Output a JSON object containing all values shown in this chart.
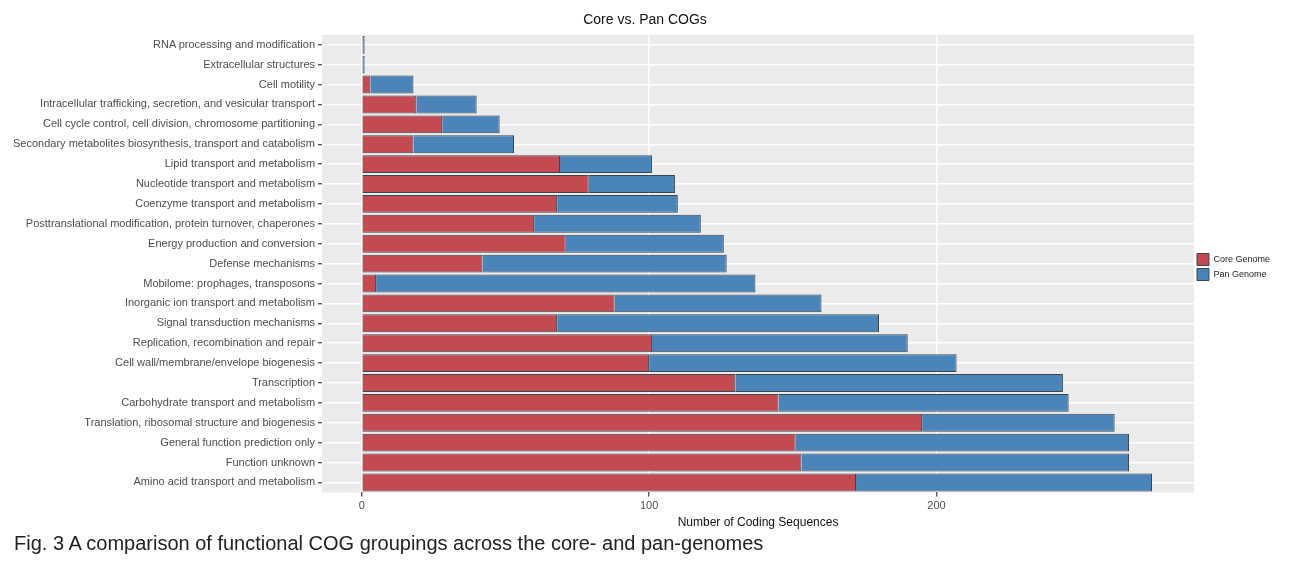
{
  "chart_data": {
    "type": "bar",
    "orientation": "horizontal",
    "stacked": true,
    "title": "Core vs. Pan COGs",
    "xlabel": "Number of Coding Sequences",
    "categories": [
      "RNA processing and modification",
      "Extracellular structures",
      "Cell motility",
      "Intracellular trafficking, secretion, and vesicular transport",
      "Cell cycle control, cell division, chromosome partitioning",
      "Secondary metabolites biosynthesis, transport and catabolism",
      "Lipid transport and metabolism",
      "Nucleotide transport and metabolism",
      "Coenzyme transport and metabolism",
      "Posttranslational modification, protein turnover, chaperones",
      "Energy production and conversion",
      "Defense mechanisms",
      "Mobilome: prophages, transposons",
      "Inorganic ion transport and metabolism",
      "Signal transduction mechanisms",
      "Replication, recombination and repair",
      "Cell wall/membrane/envelope biogenesis",
      "Transcription",
      "Carbohydrate transport and metabolism",
      "Translation, ribosomal structure and biogenesis",
      "General function prediction only",
      "Function unknown",
      "Amino acid transport and metabolism"
    ],
    "series": [
      {
        "name": "Core Genome",
        "color": "#c44a52",
        "values": [
          0,
          0,
          3,
          19,
          28,
          18,
          69,
          79,
          68,
          60,
          71,
          42,
          5,
          88,
          68,
          101,
          100,
          130,
          145,
          195,
          151,
          153,
          172
        ]
      },
      {
        "name": "Pan Genome",
        "color": "#4a84b8",
        "values": [
          1,
          1,
          15,
          21,
          20,
          35,
          32,
          30,
          42,
          58,
          55,
          85,
          132,
          72,
          112,
          89,
          107,
          114,
          101,
          67,
          116,
          114,
          103
        ]
      }
    ],
    "xlim": [
      -13.8,
      289.6
    ],
    "xticks": [
      0,
      100,
      200
    ],
    "grid": true,
    "legend": "right",
    "annotations": [
      "Fig. 3 A comparison of functional COG groupings across the core- and pan-genomes"
    ]
  }
}
